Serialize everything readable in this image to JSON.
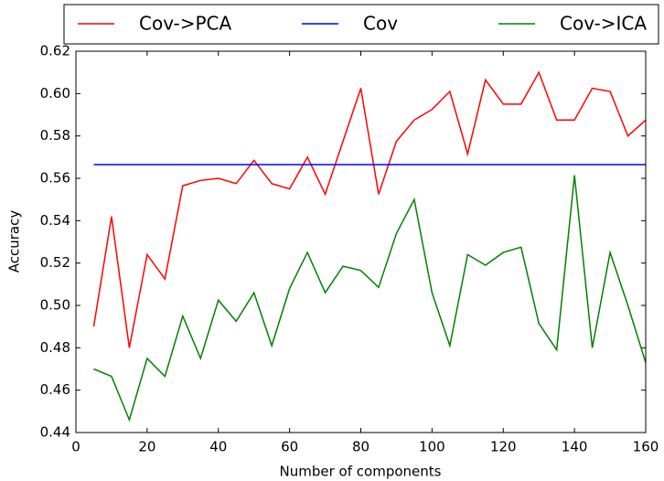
{
  "chart_data": {
    "type": "line",
    "x_label": "Number of components",
    "y_label": "Accuracy",
    "x": [
      5,
      10,
      15,
      20,
      25,
      30,
      35,
      40,
      45,
      50,
      55,
      60,
      65,
      70,
      75,
      80,
      85,
      90,
      95,
      100,
      105,
      110,
      115,
      120,
      125,
      130,
      135,
      140,
      145,
      150,
      155,
      160
    ],
    "series": [
      {
        "name": "Cov->PCA",
        "color": "#ff0000",
        "values": [
          0.49,
          0.542,
          0.48,
          0.524,
          0.5125,
          0.5565,
          0.559,
          0.56,
          0.5575,
          0.5685,
          0.5575,
          0.555,
          0.57,
          0.5525,
          0.5775,
          0.6025,
          0.5525,
          0.5775,
          0.5875,
          0.5925,
          0.601,
          0.5715,
          0.6065,
          0.595,
          0.595,
          0.61,
          0.5875,
          0.5875,
          0.6025,
          0.601,
          0.58,
          0.5875
        ]
      },
      {
        "name": "Cov",
        "color": "#0000ff",
        "values": [
          0.5665,
          0.5665,
          0.5665,
          0.5665,
          0.5665,
          0.5665,
          0.5665,
          0.5665,
          0.5665,
          0.5665,
          0.5665,
          0.5665,
          0.5665,
          0.5665,
          0.5665,
          0.5665,
          0.5665,
          0.5665,
          0.5665,
          0.5665,
          0.5665,
          0.5665,
          0.5665,
          0.5665,
          0.5665,
          0.5665,
          0.5665,
          0.5665,
          0.5665,
          0.5665,
          0.5665,
          0.5665
        ]
      },
      {
        "name": "Cov->ICA",
        "color": "#008000",
        "values": [
          0.47,
          0.4665,
          0.446,
          0.475,
          0.4665,
          0.495,
          0.475,
          0.5025,
          0.4925,
          0.506,
          0.481,
          0.508,
          0.525,
          0.506,
          0.5185,
          0.5165,
          0.5085,
          0.534,
          0.55,
          0.506,
          0.481,
          0.524,
          0.519,
          0.525,
          0.5275,
          0.4915,
          0.479,
          0.5615,
          0.48,
          0.525,
          0.5,
          0.473
        ]
      }
    ],
    "xlim": [
      0,
      160
    ],
    "xticks": [
      0,
      20,
      40,
      60,
      80,
      100,
      120,
      140,
      160
    ],
    "ylim": [
      0.44,
      0.62
    ],
    "yticks": [
      0.44,
      0.46,
      0.48,
      {
        "value": 0.5,
        "label": "0.50"
      },
      0.52,
      0.54,
      0.56,
      0.58,
      {
        "value": 0.6,
        "label": "0.60"
      },
      0.62
    ],
    "legend": "top"
  }
}
